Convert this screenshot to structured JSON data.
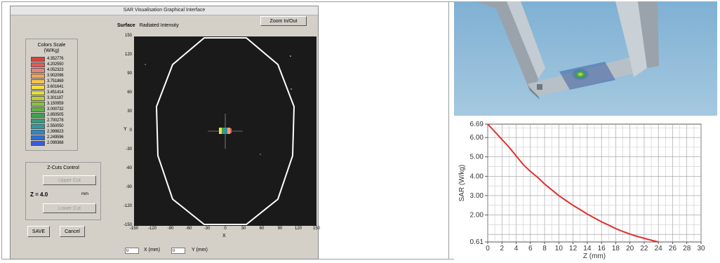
{
  "window": {
    "title": "SAR Visualisation Graphical Interface"
  },
  "zoom_button": "Zoom In/Out",
  "surface": {
    "bold": "Surface",
    "mode": "Radiated Intensity"
  },
  "color_scale": {
    "title_line1": "Colors Scale",
    "title_line2": "(W/Kg)",
    "entries": [
      {
        "value": "4.352776",
        "color": "#d4453f"
      },
      {
        "value": "4.202550",
        "color": "#e25a5a"
      },
      {
        "value": "4.052323",
        "color": "#e8837b"
      },
      {
        "value": "3.902096",
        "color": "#f0a35a"
      },
      {
        "value": "3.751869",
        "color": "#f6c24e"
      },
      {
        "value": "3.601641",
        "color": "#f2de45"
      },
      {
        "value": "3.451414",
        "color": "#dede3e"
      },
      {
        "value": "3.301187",
        "color": "#b8cf3a"
      },
      {
        "value": "3.150959",
        "color": "#8cc040"
      },
      {
        "value": "3.000732",
        "color": "#5fb048"
      },
      {
        "value": "2.850505",
        "color": "#3da24e"
      },
      {
        "value": "2.700278",
        "color": "#2ea07c"
      },
      {
        "value": "2.550050",
        "color": "#2a9aa9"
      },
      {
        "value": "2.399823",
        "color": "#2c88c8"
      },
      {
        "value": "2.249596",
        "color": "#2f6fd4"
      },
      {
        "value": "2.099368",
        "color": "#3b5cd6"
      }
    ]
  },
  "zcuts": {
    "title": "Z-Cuts Control",
    "upper_label": "Upper Cut",
    "z_label": "Z = ",
    "z_value": "4.0",
    "unit": "mm",
    "lower_label": "Lower Cut"
  },
  "save_label": "SAVE",
  "cancel_label": "Cancel",
  "plot": {
    "y_ticks": [
      "150",
      "120",
      "90",
      "60",
      "30",
      "0",
      "-30",
      "-60",
      "-90",
      "-120",
      "-150"
    ],
    "x_ticks": [
      "-150",
      "-120",
      "-90",
      "-60",
      "-30",
      "0",
      "30",
      "60",
      "90",
      "120",
      "150"
    ],
    "x_label": "X",
    "y_label": "Y"
  },
  "xy_readout": {
    "x_value": "0",
    "x_label": "X (mm)",
    "y_value": "0",
    "y_label": "Y (mm)"
  },
  "chart_data": {
    "type": "line",
    "x": [
      0,
      1,
      2,
      3,
      4,
      5,
      6,
      7,
      8,
      9,
      10,
      11,
      12,
      13,
      14,
      15,
      16,
      17,
      18,
      19,
      20,
      21,
      22,
      23,
      24
    ],
    "series": [
      {
        "values": [
          6.69,
          6.3,
          5.9,
          5.5,
          5.05,
          4.6,
          4.25,
          3.95,
          3.6,
          3.3,
          3.0,
          2.75,
          2.5,
          2.28,
          2.05,
          1.85,
          1.65,
          1.48,
          1.3,
          1.15,
          1.02,
          0.9,
          0.8,
          0.7,
          0.61
        ]
      }
    ],
    "y_tick_labels": [
      "6.69",
      "6.00",
      "5.00",
      "4.00",
      "3.00",
      "2.00",
      "0.61"
    ],
    "x_tick_labels": [
      "0",
      "2",
      "4",
      "6",
      "8",
      "10",
      "12",
      "14",
      "16",
      "18",
      "20",
      "22",
      "24",
      "26",
      "28",
      "30"
    ],
    "xlabel": "Z (mm)",
    "ylabel": "SAR (W/kg)",
    "xlim": [
      0,
      30
    ],
    "ylim": [
      0.61,
      6.69
    ],
    "grid": true,
    "line_color": "#e03030"
  }
}
